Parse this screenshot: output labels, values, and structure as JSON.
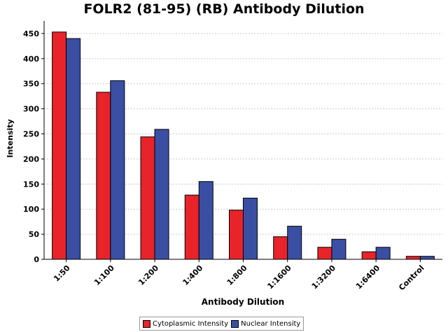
{
  "chart_data": {
    "type": "bar",
    "title": "FOLR2 (81-95) (RB) Antibody Dilution",
    "xlabel": "Antibody Dilution",
    "ylabel": "Intensity",
    "categories": [
      "1:50",
      "1:100",
      "1:200",
      "1:400",
      "1:800",
      "1:1600",
      "1:3200",
      "1:6400",
      "Control"
    ],
    "series": [
      {
        "name": "Cytoplasmic Intensity",
        "color": "#e8232a",
        "values": [
          453,
          333,
          244,
          128,
          98,
          45,
          24,
          15,
          6
        ]
      },
      {
        "name": "Nuclear Intensity",
        "color": "#3a4fa3",
        "values": [
          440,
          356,
          259,
          155,
          122,
          66,
          40,
          24,
          6
        ]
      }
    ],
    "ylim": [
      0,
      475
    ],
    "yticks": [
      0,
      50,
      100,
      150,
      200,
      250,
      300,
      350,
      400,
      450
    ],
    "grid": true,
    "legend_position": "bottom"
  }
}
